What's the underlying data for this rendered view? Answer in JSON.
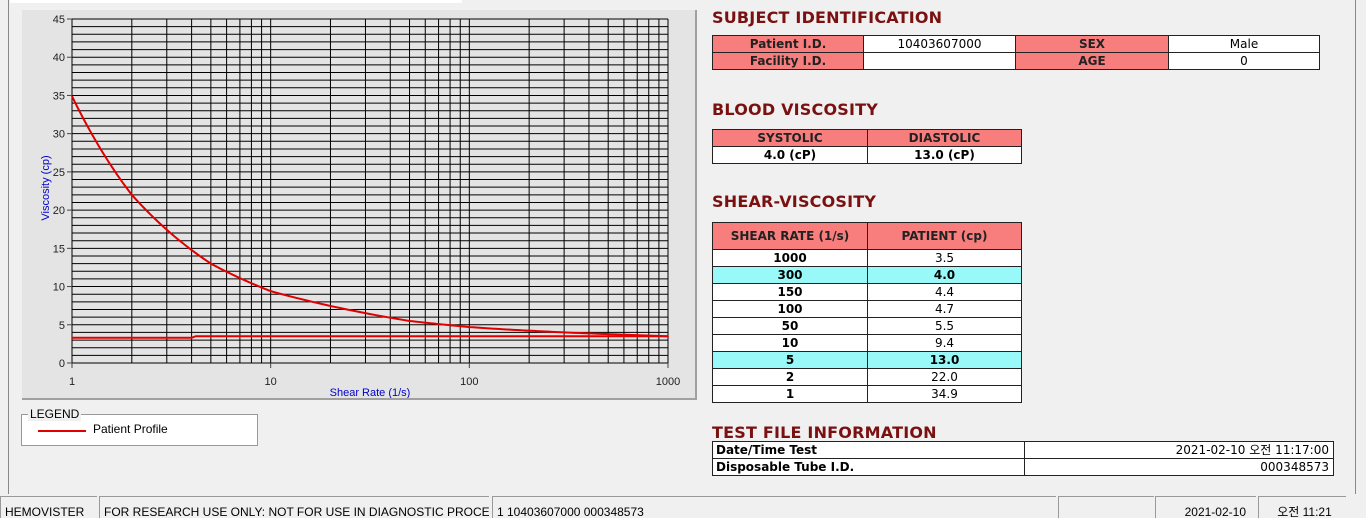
{
  "chart_data": {
    "type": "line",
    "xlabel": "Shear Rate (1/s)",
    "ylabel": "Viscosity (cp)",
    "x_scale": "log",
    "xlim": [
      1,
      1000
    ],
    "ylim": [
      0,
      45
    ],
    "x_ticks": [
      "1",
      "10",
      "100",
      "1000"
    ],
    "y_ticks": [
      "0",
      "5",
      "10",
      "15",
      "20",
      "25",
      "30",
      "35",
      "40",
      "45"
    ],
    "grid": true,
    "legend_position": "below-left",
    "series": [
      {
        "name": "Patient Profile",
        "color": "#e00000",
        "x": [
          1,
          2,
          5,
          10,
          50,
          100,
          150,
          300,
          1000
        ],
        "y": [
          34.9,
          22.0,
          13.0,
          9.4,
          5.5,
          4.7,
          4.4,
          4.0,
          3.5
        ]
      },
      {
        "color": "#e00000",
        "x": [
          1,
          4,
          4.2,
          1000
        ],
        "y": [
          3.3,
          3.3,
          3.5,
          3.5
        ]
      }
    ]
  },
  "legend": {
    "title": "LEGEND",
    "items": [
      "Patient Profile"
    ]
  },
  "subject": {
    "title": "SUBJECT IDENTIFICATION",
    "patient_id_label": "Patient I.D.",
    "patient_id": "10403607000",
    "sex_label": "SEX",
    "sex": "Male",
    "facility_id_label": "Facility I.D.",
    "facility_id": "",
    "age_label": "AGE",
    "age": "0"
  },
  "blood": {
    "title": "BLOOD VISCOSITY",
    "systolic_label": "SYSTOLIC",
    "diastolic_label": "DIASTOLIC",
    "systolic": "4.0 (cP)",
    "diastolic": "13.0 (cP)"
  },
  "shear": {
    "title": "SHEAR-VISCOSITY",
    "col1": "SHEAR RATE (1/s)",
    "col2": "PATIENT (cp)",
    "highlight_color": "#99f8f8",
    "rows": [
      {
        "rate": "1000",
        "value": "3.5",
        "highlight": false
      },
      {
        "rate": "300",
        "value": "4.0",
        "highlight": true
      },
      {
        "rate": "150",
        "value": "4.4",
        "highlight": false
      },
      {
        "rate": "100",
        "value": "4.7",
        "highlight": false
      },
      {
        "rate": "50",
        "value": "5.5",
        "highlight": false
      },
      {
        "rate": "10",
        "value": "9.4",
        "highlight": false
      },
      {
        "rate": "5",
        "value": "13.0",
        "highlight": true
      },
      {
        "rate": "2",
        "value": "22.0",
        "highlight": false
      },
      {
        "rate": "1",
        "value": "34.9",
        "highlight": false
      }
    ]
  },
  "testfile": {
    "title": "TEST FILE INFORMATION",
    "datetime_label": "Date/Time Test",
    "datetime": "2021-02-10   오전 11:17:00",
    "tube_label": "Disposable Tube I.D.",
    "tube": "000348573"
  },
  "status": {
    "app": "HEMOVISTER",
    "notice": "FOR RESEARCH USE ONLY: NOT FOR USE IN DIAGNOSTIC PROCEDURES",
    "record": "1  10403607000  000348573",
    "empty": "",
    "date": "2021-02-10",
    "time": "오전 11:21"
  },
  "colors": {
    "header": "#f87e7e",
    "title": "#7a1010",
    "curve": "#e00000",
    "axis_label": "#0000cc"
  }
}
